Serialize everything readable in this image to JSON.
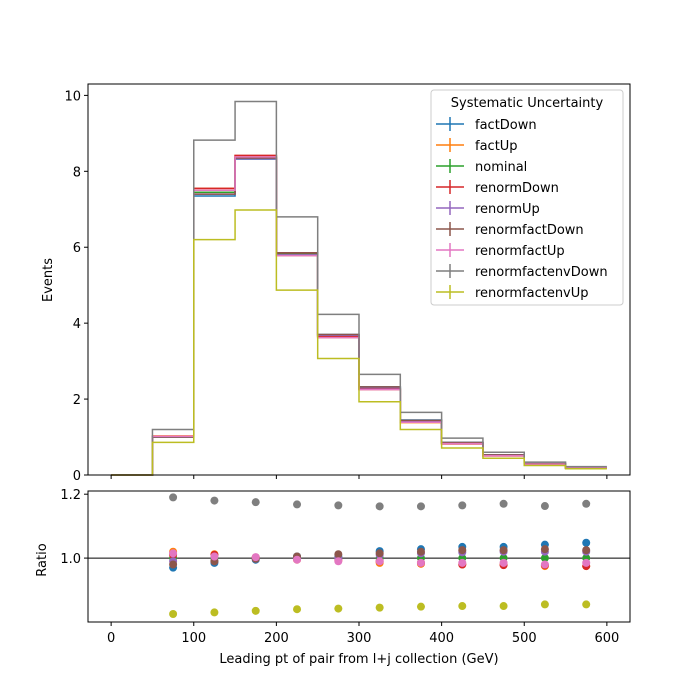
{
  "chart_data": {
    "type": "step",
    "bin_edges": [
      0,
      50,
      100,
      150,
      200,
      250,
      300,
      350,
      400,
      450,
      500,
      550,
      600
    ],
    "main": {
      "ylabel": "Events",
      "ylim": [
        0,
        10.3
      ],
      "yticks": [
        0,
        2,
        4,
        6,
        8,
        10
      ]
    },
    "ratio": {
      "ylabel": "Ratio",
      "ylim": [
        0.8,
        1.21
      ],
      "yticks": [
        1.0,
        1.2
      ],
      "reference": 1.0
    },
    "x": {
      "label": "Leading pt of pair from l+j collection (GeV)",
      "xlim": [
        -28,
        628
      ],
      "xticks": [
        0,
        100,
        200,
        300,
        400,
        500,
        600
      ]
    },
    "legend": {
      "title": "Systematic Uncertainty",
      "position": "upper right"
    },
    "series": [
      {
        "name": "factDown",
        "color": "#1f77b4",
        "values": [
          0,
          1.0,
          7.35,
          8.32,
          5.85,
          3.7,
          2.32,
          1.45,
          0.86,
          0.53,
          0.3,
          0.195
        ],
        "ratio": [
          0.97,
          0.985,
          0.995,
          1.005,
          1.005,
          1.022,
          1.028,
          1.035,
          1.035,
          1.042,
          1.048
        ]
      },
      {
        "name": "factUp",
        "color": "#ff7f0e",
        "values": [
          0,
          1.03,
          7.55,
          8.4,
          5.78,
          3.62,
          2.25,
          1.38,
          0.82,
          0.505,
          0.285,
          0.183
        ],
        "ratio": [
          1.02,
          1.012,
          1.002,
          0.995,
          0.992,
          0.985,
          0.982,
          0.98,
          0.98,
          0.975,
          0.975
        ]
      },
      {
        "name": "nominal",
        "color": "#2ca02c",
        "values": [
          0,
          1.01,
          7.45,
          8.36,
          5.82,
          3.66,
          2.28,
          1.41,
          0.835,
          0.515,
          0.29,
          0.188
        ],
        "ratio": [
          1.0,
          1.0,
          1.0,
          1.0,
          1.0,
          1.0,
          1.0,
          1.0,
          1.0,
          1.0,
          1.0
        ]
      },
      {
        "name": "renormDown",
        "color": "#d62728",
        "values": [
          0,
          1.02,
          7.55,
          8.42,
          5.85,
          3.65,
          2.26,
          1.39,
          0.82,
          0.505,
          0.285,
          0.182
        ],
        "ratio": [
          1.01,
          1.01,
          1.002,
          1.0,
          0.998,
          0.99,
          0.985,
          0.98,
          0.978,
          0.978,
          0.975
        ]
      },
      {
        "name": "renormUp",
        "color": "#9467bd",
        "values": [
          0,
          1.0,
          7.4,
          8.33,
          5.8,
          3.68,
          2.3,
          1.43,
          0.85,
          0.525,
          0.3,
          0.193
        ],
        "ratio": [
          0.99,
          0.99,
          0.998,
          1.0,
          1.0,
          1.01,
          1.015,
          1.018,
          1.02,
          1.02,
          1.02
        ]
      },
      {
        "name": "renormfactDown",
        "color": "#8c564b",
        "values": [
          0,
          1.0,
          7.4,
          8.35,
          5.85,
          3.7,
          2.32,
          1.44,
          0.855,
          0.53,
          0.3,
          0.193
        ],
        "ratio": [
          0.98,
          0.99,
          0.998,
          1.005,
          1.012,
          1.015,
          1.02,
          1.025,
          1.025,
          1.028,
          1.025
        ]
      },
      {
        "name": "renormfactUp",
        "color": "#e377c2",
        "values": [
          0,
          1.02,
          7.5,
          8.38,
          5.78,
          3.62,
          2.25,
          1.39,
          0.825,
          0.508,
          0.285,
          0.185
        ],
        "ratio": [
          1.015,
          1.005,
          1.003,
          0.995,
          0.99,
          0.99,
          0.985,
          0.985,
          0.985,
          0.98,
          0.985
        ]
      },
      {
        "name": "renormfactenvDown",
        "color": "#7f7f7f",
        "values": [
          0,
          1.2,
          8.82,
          9.84,
          6.8,
          4.23,
          2.65,
          1.65,
          0.97,
          0.6,
          0.34,
          0.22
        ],
        "ratio": [
          1.19,
          1.18,
          1.175,
          1.168,
          1.165,
          1.162,
          1.162,
          1.165,
          1.17,
          1.163,
          1.17
        ]
      },
      {
        "name": "renormfactenvUp",
        "color": "#bcbd22",
        "values": [
          0,
          0.86,
          6.2,
          6.98,
          4.87,
          3.07,
          1.93,
          1.2,
          0.71,
          0.44,
          0.25,
          0.165
        ],
        "ratio": [
          0.825,
          0.83,
          0.835,
          0.84,
          0.842,
          0.845,
          0.848,
          0.85,
          0.85,
          0.855,
          0.855
        ]
      }
    ]
  }
}
